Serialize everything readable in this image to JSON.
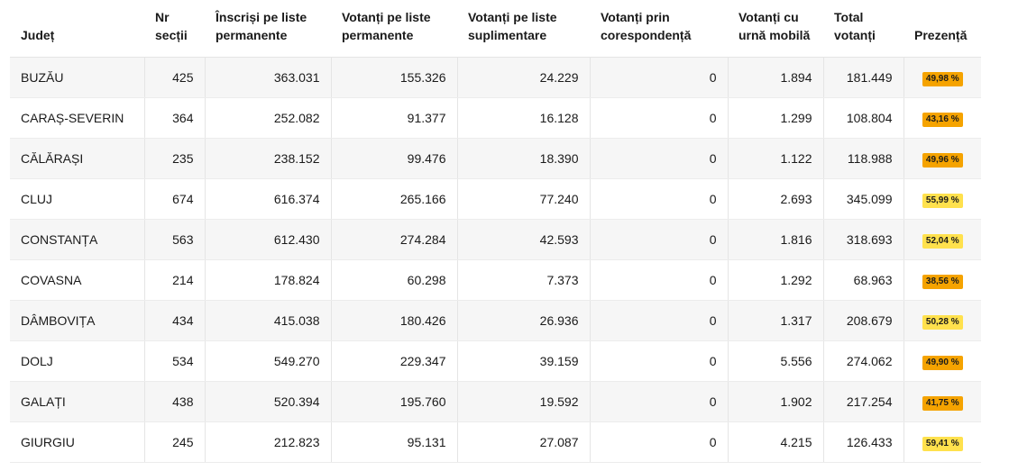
{
  "headers": {
    "county": "Județ",
    "sections": "Nr secții",
    "registered": "Înscriși pe liste permanente",
    "voters_permanent": "Votanți pe liste permanente",
    "voters_supplementary": "Votanți pe liste suplimentare",
    "voters_mail": "Votanți prin corespondență",
    "voters_mobile": "Votanți cu urnă mobilă",
    "total": "Total votanți",
    "turnout": "Prezență"
  },
  "colors": {
    "badge_orange": "#f5a300",
    "badge_yellow": "#ffe14d"
  },
  "rows": [
    {
      "county": "BUZĂU",
      "sections": "425",
      "registered": "363.031",
      "voters_permanent": "155.326",
      "voters_supplementary": "24.229",
      "voters_mail": "0",
      "voters_mobile": "1.894",
      "total": "181.449",
      "turnout": "49,98 %",
      "badge_color": "#f5a300"
    },
    {
      "county": "CARAȘ-SEVERIN",
      "sections": "364",
      "registered": "252.082",
      "voters_permanent": "91.377",
      "voters_supplementary": "16.128",
      "voters_mail": "0",
      "voters_mobile": "1.299",
      "total": "108.804",
      "turnout": "43,16 %",
      "badge_color": "#f5a300"
    },
    {
      "county": "CĂLĂRAȘI",
      "sections": "235",
      "registered": "238.152",
      "voters_permanent": "99.476",
      "voters_supplementary": "18.390",
      "voters_mail": "0",
      "voters_mobile": "1.122",
      "total": "118.988",
      "turnout": "49,96 %",
      "badge_color": "#f5a300"
    },
    {
      "county": "CLUJ",
      "sections": "674",
      "registered": "616.374",
      "voters_permanent": "265.166",
      "voters_supplementary": "77.240",
      "voters_mail": "0",
      "voters_mobile": "2.693",
      "total": "345.099",
      "turnout": "55,99 %",
      "badge_color": "#ffe14d"
    },
    {
      "county": "CONSTANȚA",
      "sections": "563",
      "registered": "612.430",
      "voters_permanent": "274.284",
      "voters_supplementary": "42.593",
      "voters_mail": "0",
      "voters_mobile": "1.816",
      "total": "318.693",
      "turnout": "52,04 %",
      "badge_color": "#ffe14d"
    },
    {
      "county": "COVASNA",
      "sections": "214",
      "registered": "178.824",
      "voters_permanent": "60.298",
      "voters_supplementary": "7.373",
      "voters_mail": "0",
      "voters_mobile": "1.292",
      "total": "68.963",
      "turnout": "38,56 %",
      "badge_color": "#f5a300"
    },
    {
      "county": "DÂMBOVIȚA",
      "sections": "434",
      "registered": "415.038",
      "voters_permanent": "180.426",
      "voters_supplementary": "26.936",
      "voters_mail": "0",
      "voters_mobile": "1.317",
      "total": "208.679",
      "turnout": "50,28 %",
      "badge_color": "#ffe14d"
    },
    {
      "county": "DOLJ",
      "sections": "534",
      "registered": "549.270",
      "voters_permanent": "229.347",
      "voters_supplementary": "39.159",
      "voters_mail": "0",
      "voters_mobile": "5.556",
      "total": "274.062",
      "turnout": "49,90 %",
      "badge_color": "#f5a300"
    },
    {
      "county": "GALAȚI",
      "sections": "438",
      "registered": "520.394",
      "voters_permanent": "195.760",
      "voters_supplementary": "19.592",
      "voters_mail": "0",
      "voters_mobile": "1.902",
      "total": "217.254",
      "turnout": "41,75 %",
      "badge_color": "#f5a300"
    },
    {
      "county": "GIURGIU",
      "sections": "245",
      "registered": "212.823",
      "voters_permanent": "95.131",
      "voters_supplementary": "27.087",
      "voters_mail": "0",
      "voters_mobile": "4.215",
      "total": "126.433",
      "turnout": "59,41 %",
      "badge_color": "#ffe14d"
    }
  ]
}
